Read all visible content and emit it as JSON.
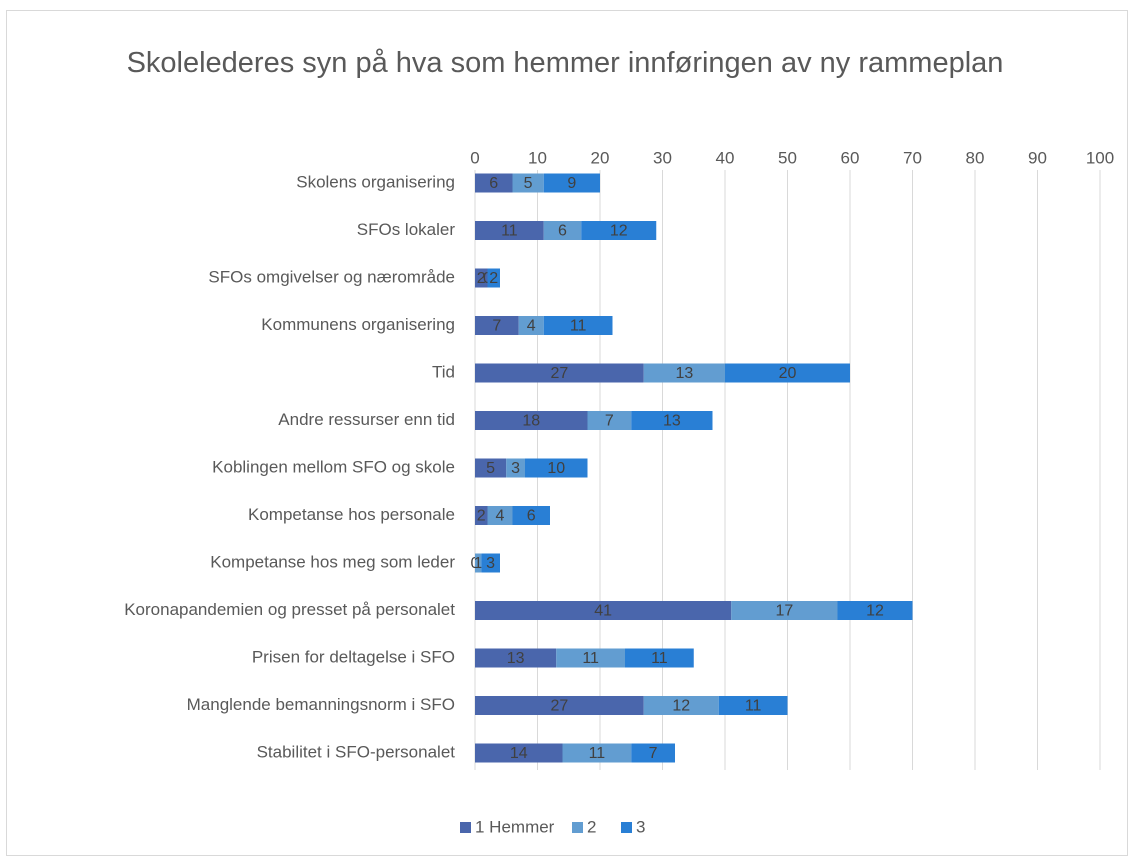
{
  "chart_data": {
    "type": "stacked_barh",
    "title": "Skolelederes syn på hva som hemmer innføringen av ny rammeplan",
    "categories": [
      "Skolens organisering",
      "SFOs lokaler",
      "SFOs omgivelser og nærområde",
      "Kommunens organisering",
      "Tid",
      "Andre ressurser enn tid",
      "Koblingen mellom SFO og skole",
      "Kompetanse hos personale",
      "Kompetanse hos meg som leder",
      "Koronapandemien og presset på personalet",
      "Prisen for deltagelse i SFO",
      "Manglende bemanningsnorm i SFO",
      "Stabilitet i SFO-personalet"
    ],
    "series": [
      {
        "name": "1 Hemmer",
        "color": "#4a66ac",
        "values": [
          6,
          11,
          2,
          7,
          27,
          18,
          5,
          2,
          0,
          41,
          13,
          27,
          14
        ]
      },
      {
        "name": "2",
        "color": "#629dd1",
        "values": [
          5,
          6,
          0,
          4,
          13,
          7,
          3,
          4,
          1,
          17,
          11,
          12,
          11
        ]
      },
      {
        "name": "3",
        "color": "#297fd5",
        "values": [
          9,
          12,
          2,
          11,
          20,
          13,
          10,
          6,
          3,
          12,
          11,
          11,
          7
        ]
      }
    ],
    "xlim": [
      0,
      100
    ],
    "xticks": [
      0,
      10,
      20,
      30,
      40,
      50,
      60,
      70,
      80,
      90,
      100
    ],
    "grid": true,
    "legend": "bottom"
  }
}
